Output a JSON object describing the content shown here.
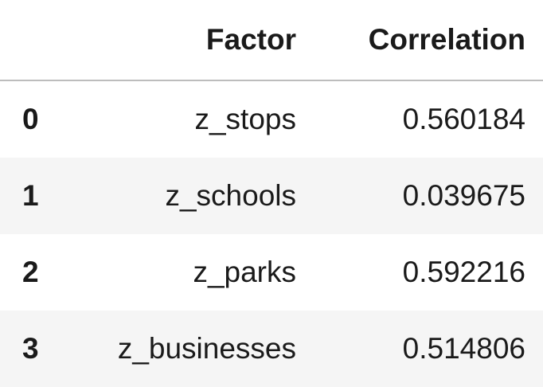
{
  "table": {
    "columns": {
      "index": "",
      "factor": "Factor",
      "correlation": "Correlation"
    },
    "rows": [
      {
        "index": "0",
        "factor": "z_stops",
        "correlation": "0.560184"
      },
      {
        "index": "1",
        "factor": "z_schools",
        "correlation": "0.039675"
      },
      {
        "index": "2",
        "factor": "z_parks",
        "correlation": "0.592216"
      },
      {
        "index": "3",
        "factor": "z_businesses",
        "correlation": "0.514806"
      }
    ]
  },
  "colors": {
    "striped_row_background": "#f5f5f5",
    "header_border": "#bdbdbd",
    "text": "#1a1a1a"
  }
}
